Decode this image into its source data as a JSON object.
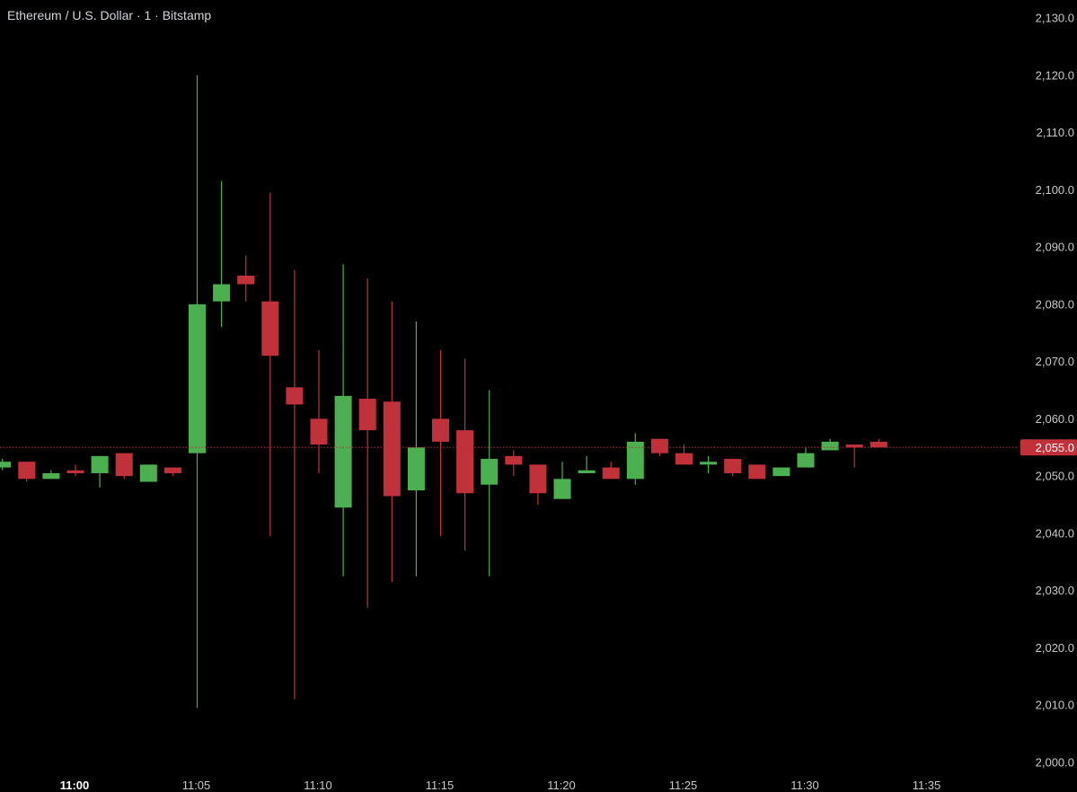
{
  "title": "Ethereum / U.S. Dollar · 1 · Bitstamp",
  "colors": {
    "background": "#000000",
    "up": "#4caf50",
    "down": "#c0313a",
    "price_line": "#b0303a",
    "axis_text": "#c8c8c8"
  },
  "current_price_label": "2,055.0",
  "chart_data": {
    "type": "candlestick",
    "title": "Ethereum / U.S. Dollar · 1 · Bitstamp",
    "ylim": [
      2000,
      2130
    ],
    "y_ticks": [
      "2,130.0",
      "2,120.0",
      "2,110.0",
      "2,100.0",
      "2,090.0",
      "2,080.0",
      "2,070.0",
      "2,060.0",
      "2,050.0",
      "2,040.0",
      "2,030.0",
      "2,020.0",
      "2,010.0",
      "2,000.0"
    ],
    "y_tick_values": [
      2130,
      2120,
      2110,
      2100,
      2090,
      2080,
      2070,
      2060,
      2050,
      2040,
      2030,
      2020,
      2010,
      2000
    ],
    "x_ticks": [
      "11:00",
      "11:05",
      "11:10",
      "11:15",
      "11:20",
      "11:25",
      "11:30",
      "11:35"
    ],
    "x_tick_minutes": [
      0,
      5,
      10,
      15,
      20,
      25,
      30,
      35
    ],
    "x_tick_bold": [
      true,
      false,
      false,
      false,
      false,
      false,
      false,
      false
    ],
    "current_price": 2055.0,
    "candles": [
      {
        "t": -3,
        "o": 2051.5,
        "h": 2053.0,
        "l": 2051.0,
        "c": 2052.5
      },
      {
        "t": -2,
        "o": 2052.5,
        "h": 2052.5,
        "l": 2049.0,
        "c": 2049.5
      },
      {
        "t": -1,
        "o": 2049.5,
        "h": 2051.0,
        "l": 2049.5,
        "c": 2050.5
      },
      {
        "t": 0,
        "o": 2051.0,
        "h": 2052.0,
        "l": 2050.0,
        "c": 2050.5
      },
      {
        "t": 1,
        "o": 2050.5,
        "h": 2053.5,
        "l": 2048.0,
        "c": 2053.5
      },
      {
        "t": 2,
        "o": 2054.0,
        "h": 2054.0,
        "l": 2049.5,
        "c": 2050.0
      },
      {
        "t": 3,
        "o": 2049.0,
        "h": 2052.0,
        "l": 2049.0,
        "c": 2052.0
      },
      {
        "t": 4,
        "o": 2051.5,
        "h": 2051.5,
        "l": 2050.0,
        "c": 2050.5
      },
      {
        "t": 5,
        "o": 2054.0,
        "h": 2120.0,
        "l": 2009.5,
        "c": 2080.0
      },
      {
        "t": 6,
        "o": 2080.5,
        "h": 2101.5,
        "l": 2076.0,
        "c": 2083.5
      },
      {
        "t": 7,
        "o": 2085.0,
        "h": 2088.5,
        "l": 2080.5,
        "c": 2083.5
      },
      {
        "t": 8,
        "o": 2080.5,
        "h": 2099.5,
        "l": 2039.5,
        "c": 2071.0
      },
      {
        "t": 9,
        "o": 2065.5,
        "h": 2086.0,
        "l": 2011.0,
        "c": 2062.5
      },
      {
        "t": 10,
        "o": 2060.0,
        "h": 2072.0,
        "l": 2050.5,
        "c": 2055.5
      },
      {
        "t": 11,
        "o": 2044.5,
        "h": 2087.0,
        "l": 2032.5,
        "c": 2064.0
      },
      {
        "t": 12,
        "o": 2063.5,
        "h": 2084.5,
        "l": 2027.0,
        "c": 2058.0
      },
      {
        "t": 13,
        "o": 2063.0,
        "h": 2080.5,
        "l": 2031.5,
        "c": 2046.5
      },
      {
        "t": 14,
        "o": 2047.5,
        "h": 2077.0,
        "l": 2032.5,
        "c": 2055.0
      },
      {
        "t": 15,
        "o": 2060.0,
        "h": 2072.0,
        "l": 2039.5,
        "c": 2056.0
      },
      {
        "t": 16,
        "o": 2058.0,
        "h": 2070.5,
        "l": 2037.0,
        "c": 2047.0
      },
      {
        "t": 17,
        "o": 2048.5,
        "h": 2065.0,
        "l": 2032.5,
        "c": 2053.0
      },
      {
        "t": 18,
        "o": 2053.5,
        "h": 2054.5,
        "l": 2050.0,
        "c": 2052.0
      },
      {
        "t": 19,
        "o": 2052.0,
        "h": 2052.0,
        "l": 2045.0,
        "c": 2047.0
      },
      {
        "t": 20,
        "o": 2046.0,
        "h": 2052.5,
        "l": 2046.0,
        "c": 2049.5
      },
      {
        "t": 21,
        "o": 2050.5,
        "h": 2053.5,
        "l": 2050.5,
        "c": 2051.0
      },
      {
        "t": 22,
        "o": 2051.5,
        "h": 2052.5,
        "l": 2049.5,
        "c": 2049.5
      },
      {
        "t": 23,
        "o": 2049.5,
        "h": 2057.5,
        "l": 2048.5,
        "c": 2056.0
      },
      {
        "t": 24,
        "o": 2056.5,
        "h": 2056.5,
        "l": 2053.5,
        "c": 2054.0
      },
      {
        "t": 25,
        "o": 2054.0,
        "h": 2055.5,
        "l": 2052.0,
        "c": 2052.0
      },
      {
        "t": 26,
        "o": 2052.0,
        "h": 2053.5,
        "l": 2050.5,
        "c": 2052.5
      },
      {
        "t": 27,
        "o": 2053.0,
        "h": 2053.0,
        "l": 2050.0,
        "c": 2050.5
      },
      {
        "t": 28,
        "o": 2052.0,
        "h": 2052.0,
        "l": 2049.5,
        "c": 2049.5
      },
      {
        "t": 29,
        "o": 2050.0,
        "h": 2051.5,
        "l": 2050.0,
        "c": 2051.5
      },
      {
        "t": 30,
        "o": 2051.5,
        "h": 2055.0,
        "l": 2051.5,
        "c": 2054.0
      },
      {
        "t": 31,
        "o": 2054.5,
        "h": 2056.5,
        "l": 2054.5,
        "c": 2056.0
      },
      {
        "t": 32,
        "o": 2055.5,
        "h": 2055.5,
        "l": 2051.5,
        "c": 2055.0
      },
      {
        "t": 33,
        "o": 2056.0,
        "h": 2056.5,
        "l": 2055.0,
        "c": 2055.0
      }
    ]
  }
}
